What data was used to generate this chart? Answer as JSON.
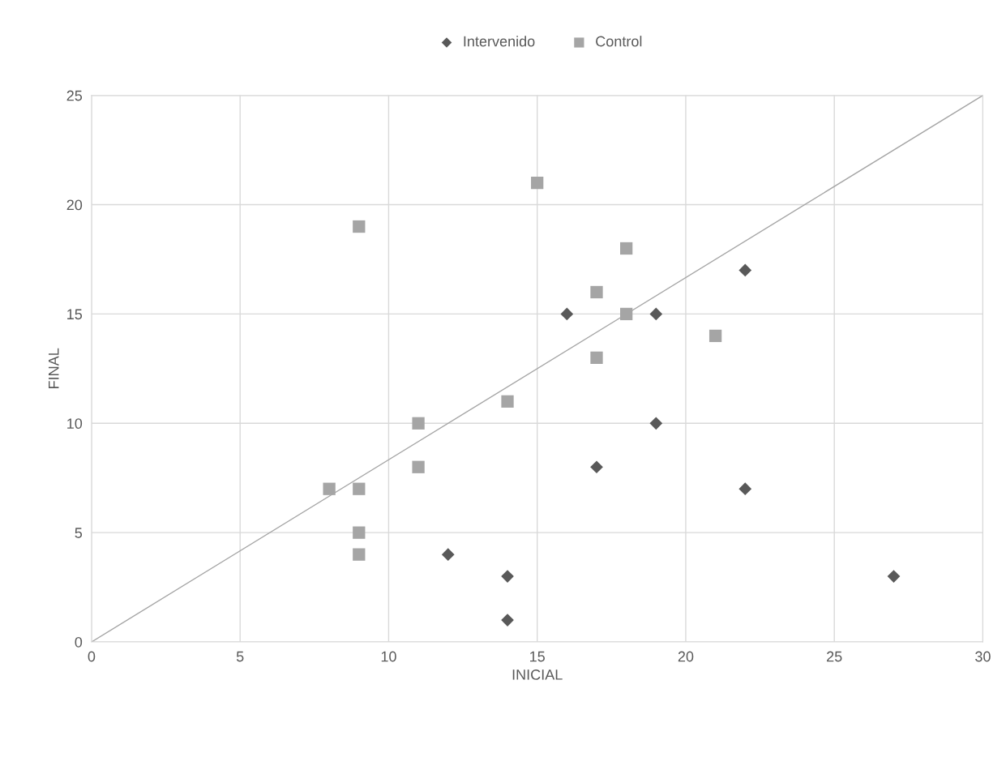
{
  "chart_data": {
    "type": "scatter",
    "xlabel": "INICIAL",
    "ylabel": "FINAL",
    "xlim": [
      0,
      30
    ],
    "xticks": [
      0,
      5,
      10,
      15,
      20,
      25,
      30
    ],
    "ylim": [
      0,
      25
    ],
    "yticks": [
      0,
      5,
      10,
      15,
      20,
      25
    ],
    "grid": true,
    "legend": "top",
    "series": [
      {
        "name": "Intervenido",
        "color": "#595959",
        "marker": "diamond",
        "x": [
          22,
          16,
          19,
          19,
          17,
          22,
          12,
          14,
          14,
          27
        ],
        "values": [
          17,
          15,
          15,
          10,
          8,
          7,
          4,
          3,
          1,
          3
        ]
      },
      {
        "name": "Control",
        "color": "#a5a5a5",
        "marker": "square",
        "x": [
          15,
          9,
          18,
          17,
          18,
          21,
          17,
          14,
          11,
          11,
          8,
          9,
          9,
          9
        ],
        "values": [
          21,
          19,
          18,
          16,
          15,
          14,
          13,
          11,
          10,
          8,
          7,
          7,
          5,
          4
        ]
      },
      {
        "type": "line",
        "color": "#a5a5a5",
        "marker": "none",
        "x": [
          0,
          30
        ],
        "values": [
          0,
          25
        ]
      }
    ]
  }
}
